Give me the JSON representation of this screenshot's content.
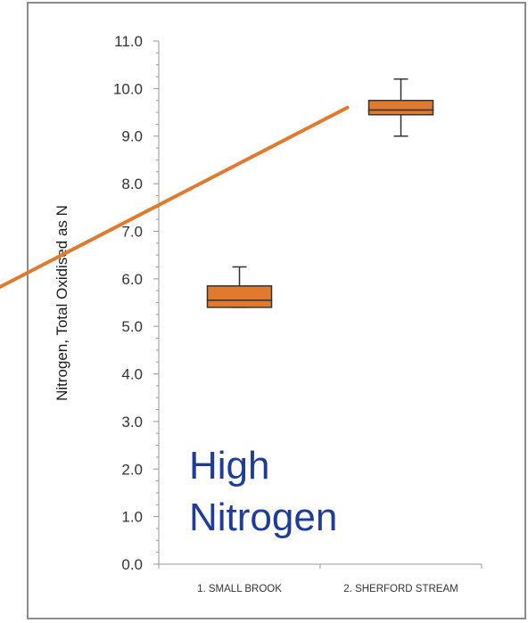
{
  "chart_data": {
    "type": "box",
    "title": "",
    "xlabel": "",
    "ylabel": "Nitrogen, Total Oxidised as N",
    "ylim": [
      0,
      11
    ],
    "yticks": [
      "0.0",
      "1.0",
      "2.0",
      "3.0",
      "4.0",
      "5.0",
      "6.0",
      "7.0",
      "8.0",
      "9.0",
      "10.0",
      "11.0"
    ],
    "categories": [
      "1. SMALL BROOK",
      "2. SHERFORD STREAM"
    ],
    "boxes": [
      {
        "category": "1. SMALL BROOK",
        "min": 5.4,
        "q1": 5.4,
        "median": 5.55,
        "q3": 5.85,
        "max": 6.25
      },
      {
        "category": "2. SHERFORD STREAM",
        "min": 9.0,
        "q1": 9.45,
        "median": 9.55,
        "q3": 9.75,
        "max": 10.2
      }
    ],
    "annotation": "High Nitrogen",
    "colors": {
      "box_fill": "#e07a2e",
      "box_edge": "#333333",
      "callout_line": "#e07a2e",
      "annotation_text": "#1f3c9a",
      "axis": "#999999"
    }
  }
}
